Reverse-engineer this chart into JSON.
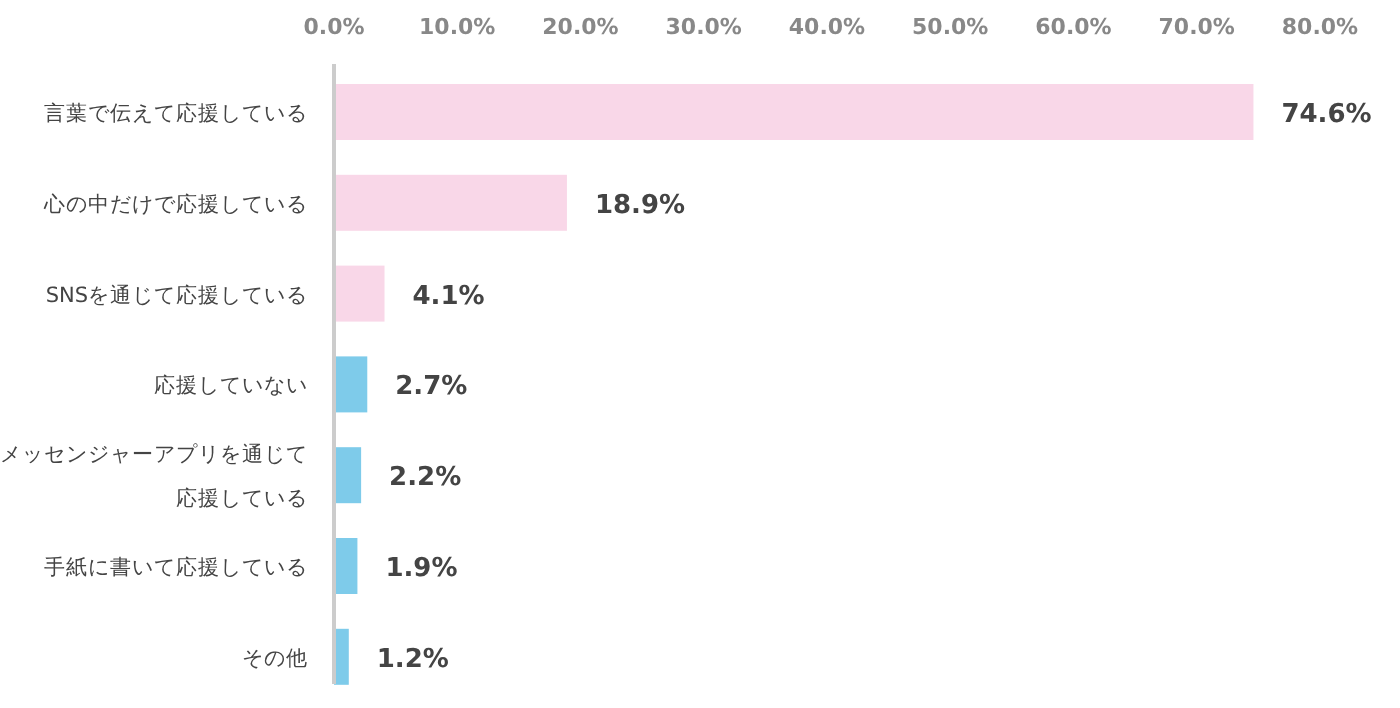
{
  "chart_data": {
    "type": "bar",
    "orientation": "horizontal",
    "categories": [
      "言葉で伝えて応援している",
      "心の中だけで応援している",
      "SNSを通じて応援している",
      "応援していない",
      "メッセンジャーアプリを通じて応援している",
      "手紙に書いて応援している",
      "その他"
    ],
    "values": [
      74.6,
      18.9,
      4.1,
      2.7,
      2.2,
      1.9,
      1.2
    ],
    "colors": [
      "#f9d7e8",
      "#f9d7e8",
      "#f9d7e8",
      "#7ecbea",
      "#7ecbea",
      "#7ecbea",
      "#7ecbea"
    ],
    "value_labels": [
      "74.6%",
      "18.9%",
      "4.1%",
      "2.7%",
      "2.2%",
      "1.9%",
      "1.2%"
    ],
    "xlim": [
      0,
      80
    ],
    "xticks": [
      {
        "value": 0,
        "label": "0.0%"
      },
      {
        "value": 10,
        "label": "10.0%"
      },
      {
        "value": 20,
        "label": "20.0%"
      },
      {
        "value": 30,
        "label": "30.0%"
      },
      {
        "value": 40,
        "label": "40.0%"
      },
      {
        "value": 50,
        "label": "50.0%"
      },
      {
        "value": 60,
        "label": "60.0%"
      },
      {
        "value": 70,
        "label": "70.0%"
      },
      {
        "value": 80,
        "label": "80.0%"
      }
    ],
    "grid": false
  }
}
